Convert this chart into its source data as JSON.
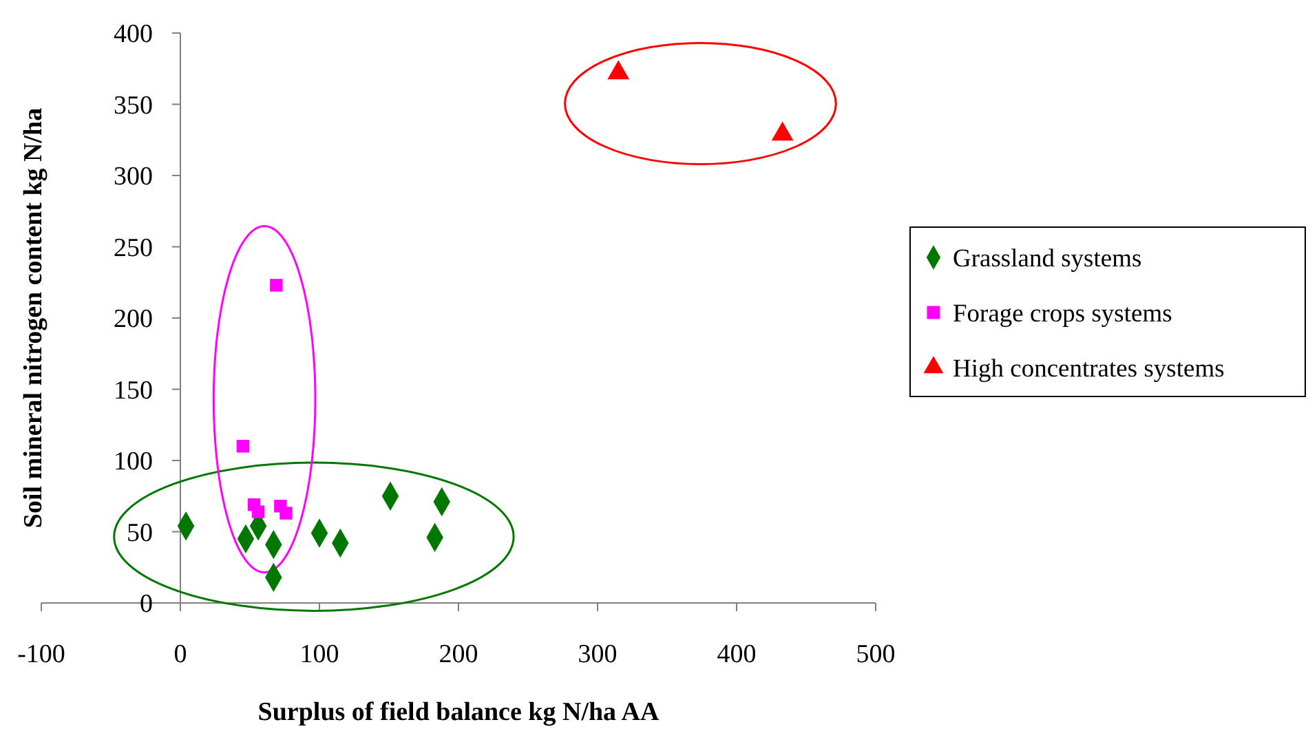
{
  "chart_data": {
    "type": "scatter",
    "xlabel": "Surplus of field balance kg N/ha AA",
    "ylabel": "Soil mineral nitrogen content kg N/ha",
    "xlim": [
      -100,
      500
    ],
    "xticks": [
      -100,
      0,
      100,
      200,
      300,
      400,
      500
    ],
    "ylim": [
      0,
      400
    ],
    "yticks": [
      0,
      50,
      100,
      150,
      200,
      250,
      300,
      350,
      400
    ],
    "grid": false,
    "legend": "right",
    "series": [
      {
        "name": "Grassland systems",
        "color": "#007800",
        "marker": "diamond",
        "x": [
          4,
          47,
          56,
          67,
          67,
          100,
          115,
          151,
          183,
          188
        ],
        "values": [
          54,
          45,
          54,
          41,
          18,
          49,
          42,
          75,
          46,
          71
        ]
      },
      {
        "name": "Forage crops systems",
        "color": "#ff00ff",
        "marker": "square",
        "x": [
          45,
          53,
          56,
          69,
          72,
          76
        ],
        "values": [
          110,
          69,
          64,
          223,
          68,
          63
        ]
      },
      {
        "name": "High concentrates systems",
        "color": "#ff0000",
        "marker": "triangle",
        "x": [
          315,
          433
        ],
        "values": [
          372,
          329
        ]
      }
    ]
  }
}
